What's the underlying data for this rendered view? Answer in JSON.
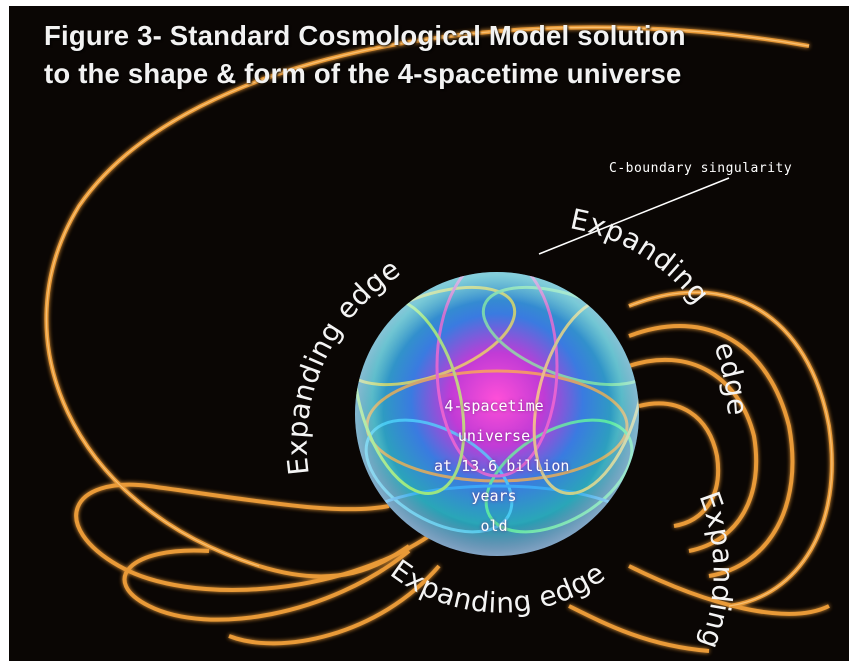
{
  "figure": {
    "title_line1": "Figure 3- Standard Cosmological Model solution",
    "title_line2": "to the shape & form of the 4-spacetime universe",
    "singularity_label": "C-boundary singularity",
    "edge_labels": {
      "upper_left": "Expanding edge",
      "upper_right": "Expanding",
      "right": "edge",
      "lower_right": "Expanding",
      "bottom": "Expanding edge"
    },
    "center_text": {
      "line1": "4-spacetime",
      "line2": "universe",
      "line3": "at 13.6 billion",
      "line4": "years",
      "line5": "old"
    },
    "colors": {
      "background": "#0a0604",
      "shell_glow": "#f5a23a",
      "text": "#f4f4f4"
    }
  }
}
